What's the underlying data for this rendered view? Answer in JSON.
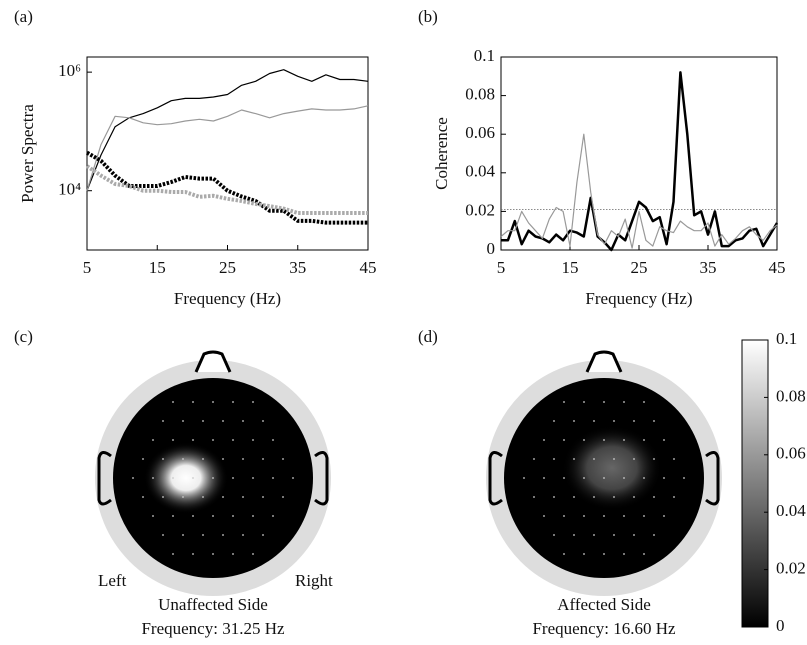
{
  "chart_data": [
    {
      "type": "line",
      "label": "(a)",
      "xlabel": "Frequency (Hz)",
      "ylabel": "Power Spectra",
      "log_y": true,
      "x": [
        5,
        7,
        9,
        11,
        13,
        15,
        17,
        19,
        21,
        23,
        25,
        27,
        29,
        31,
        33,
        35,
        37,
        39,
        41,
        43,
        45
      ],
      "xlim": [
        5,
        45
      ],
      "xticks": [
        5,
        15,
        25,
        35,
        45
      ],
      "ylim": [
        1000,
        1800000
      ],
      "yticks": [
        {
          "value": 10000,
          "label": "10⁴"
        },
        {
          "value": 1000000,
          "label": "10⁶"
        }
      ],
      "series": [
        {
          "color": "#000000",
          "style": "solid",
          "values": [
            10000,
            40000,
            120000,
            170000,
            200000,
            250000,
            330000,
            360000,
            360000,
            380000,
            420000,
            600000,
            700000,
            950000,
            1100000,
            850000,
            700000,
            900000,
            750000,
            750000,
            700000
          ]
        },
        {
          "color": "#999999",
          "style": "solid",
          "values": [
            10000,
            60000,
            180000,
            170000,
            140000,
            130000,
            135000,
            150000,
            160000,
            150000,
            180000,
            230000,
            200000,
            170000,
            200000,
            220000,
            240000,
            230000,
            230000,
            240000,
            270000
          ]
        },
        {
          "color": "#000000",
          "style": "dotted",
          "values": [
            44000,
            32000,
            18000,
            12000,
            12000,
            12000,
            14000,
            17000,
            16000,
            16000,
            10000,
            8000,
            6700,
            4600,
            4600,
            3100,
            3100,
            2900,
            2900,
            2900,
            2900
          ]
        },
        {
          "color": "#aaaaaa",
          "style": "dotted",
          "values": [
            26000,
            18000,
            13000,
            12000,
            10000,
            10000,
            9500,
            9500,
            7900,
            8200,
            7300,
            6700,
            6000,
            5500,
            5000,
            4200,
            4200,
            4200,
            4200,
            4200,
            4200
          ]
        }
      ]
    },
    {
      "type": "line",
      "label": "(b)",
      "xlabel": "Frequency (Hz)",
      "ylabel": "Coherence",
      "log_y": false,
      "x": [
        5,
        6,
        7,
        8,
        9,
        10,
        11,
        12,
        13,
        14,
        15,
        16,
        17,
        18,
        19,
        20,
        21,
        22,
        23,
        24,
        25,
        26,
        27,
        28,
        29,
        30,
        31,
        32,
        33,
        34,
        35,
        36,
        37,
        38,
        39,
        40,
        41,
        42,
        43,
        44,
        45
      ],
      "xlim": [
        5,
        45
      ],
      "xticks": [
        5,
        15,
        25,
        35,
        45
      ],
      "ylim": [
        0,
        0.1
      ],
      "yticks": [
        0,
        0.02,
        0.04,
        0.06,
        0.08,
        0.1
      ],
      "threshold": 0.021,
      "series": [
        {
          "color": "#000000",
          "style": "thick",
          "values": [
            0.005,
            0.005,
            0.015,
            0.003,
            0.01,
            0.007,
            0.006,
            0.004,
            0.008,
            0.005,
            0.01,
            0.009,
            0.007,
            0.027,
            0.007,
            0.004,
            0,
            0.008,
            0.005,
            0.015,
            0.025,
            0.022,
            0.015,
            0.017,
            0.003,
            0.025,
            0.092,
            0.06,
            0.018,
            0.02,
            0.008,
            0.02,
            0.002,
            0.002,
            0.005,
            0.006,
            0.01,
            0.011,
            0.002,
            0.008,
            0.014
          ]
        },
        {
          "color": "#999999",
          "style": "solid",
          "values": [
            0.007,
            0.01,
            0.01,
            0.02,
            0.014,
            0.01,
            0.006,
            0.016,
            0.022,
            0.02,
            0.002,
            0.035,
            0.06,
            0.03,
            0.008,
            0.003,
            0.01,
            0.007,
            0.016,
            0.001,
            0.02,
            0.005,
            0.002,
            0.012,
            0.01,
            0.009,
            0.015,
            0.012,
            0.01,
            0.01,
            0.014,
            0.002,
            0.008,
            0.003,
            0.006,
            0.01,
            0.012,
            0.008,
            0.005,
            0.01,
            0.013
          ]
        }
      ]
    },
    {
      "type": "topoplot",
      "label": "(c)",
      "left": "Left",
      "right": "Right",
      "caption": "Unaffected Side",
      "frequency": "Frequency: 31.25 Hz"
    },
    {
      "type": "topoplot",
      "label": "(d)",
      "caption": "Affected Side",
      "frequency": "Frequency: 16.60 Hz"
    },
    {
      "type": "colorbar",
      "ylim": [
        0,
        0.1
      ],
      "yticks": [
        0,
        0.02,
        0.04,
        0.06,
        0.08,
        0.1
      ]
    }
  ]
}
